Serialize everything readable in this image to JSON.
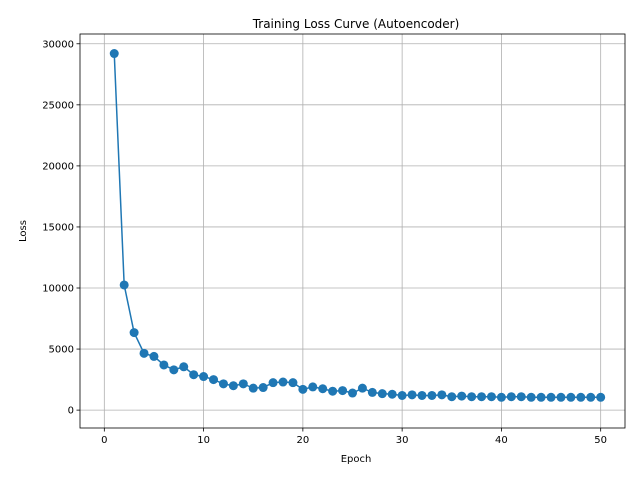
{
  "chart_data": {
    "type": "line",
    "title": "Training Loss Curve (Autoencoder)",
    "xlabel": "Epoch",
    "ylabel": "Loss",
    "xlim": [
      -2.45,
      52.45
    ],
    "ylim": [
      -1464,
      30800
    ],
    "xticks": [
      0,
      10,
      20,
      30,
      40,
      50
    ],
    "yticks": [
      0,
      5000,
      10000,
      15000,
      20000,
      25000,
      30000
    ],
    "grid": true,
    "markers": true,
    "series": [
      {
        "color": "#1f77b4",
        "x": [
          1,
          2,
          3,
          4,
          5,
          6,
          7,
          8,
          9,
          10,
          11,
          12,
          13,
          14,
          15,
          16,
          17,
          18,
          19,
          20,
          21,
          22,
          23,
          24,
          25,
          26,
          27,
          28,
          29,
          30,
          31,
          32,
          33,
          34,
          35,
          36,
          37,
          38,
          39,
          40,
          41,
          42,
          43,
          44,
          45,
          46,
          47,
          48,
          49,
          50
        ],
        "values": [
          29200,
          10250,
          6350,
          4650,
          4400,
          3700,
          3300,
          3550,
          2900,
          2750,
          2500,
          2150,
          2000,
          2150,
          1800,
          1850,
          2250,
          2300,
          2250,
          1700,
          1900,
          1750,
          1550,
          1600,
          1400,
          1800,
          1450,
          1350,
          1300,
          1200,
          1250,
          1200,
          1200,
          1250,
          1100,
          1150,
          1100,
          1100,
          1100,
          1050,
          1100,
          1100,
          1050,
          1050,
          1050,
          1050,
          1050,
          1050,
          1050,
          1050
        ]
      }
    ]
  }
}
